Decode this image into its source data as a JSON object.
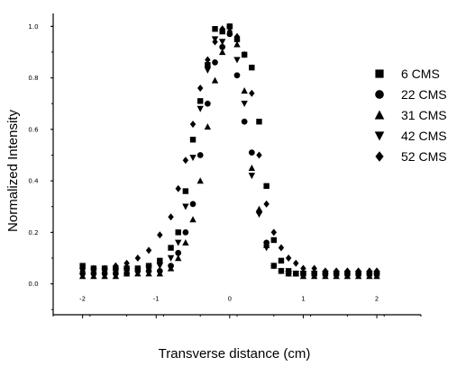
{
  "chart_data": {
    "type": "scatter",
    "title": "",
    "xlabel": "Transverse distance (cm)",
    "ylabel": "Normalized Intensity",
    "xlim": [
      -2.4,
      2.6
    ],
    "ylim": [
      -0.12,
      1.05
    ],
    "xticks": [
      -2,
      -1,
      0,
      1,
      2
    ],
    "xtick_labels": [
      "-2",
      "-1",
      "0",
      "1",
      "2"
    ],
    "yticks": [
      0.0,
      0.2,
      0.4,
      0.6,
      0.8,
      1.0
    ],
    "ytick_labels": [
      "0.0",
      "0.2",
      "0.4",
      "0.6",
      "0.8",
      "1.0"
    ],
    "grid": false,
    "legend_position": "right",
    "series": [
      {
        "name": "6 CMS",
        "marker": "square",
        "x": [
          -2.0,
          -1.85,
          -1.7,
          -1.55,
          -1.4,
          -1.25,
          -1.1,
          -0.95,
          -0.8,
          -0.7,
          -0.6,
          -0.5,
          -0.4,
          -0.3,
          -0.2,
          -0.1,
          0.0,
          0.1,
          0.2,
          0.3,
          0.4,
          0.5,
          0.6,
          0.7,
          0.8,
          0.9,
          1.0,
          1.15,
          1.3,
          1.45,
          1.6,
          1.75,
          1.9,
          2.0
        ],
        "y": [
          0.07,
          0.06,
          0.06,
          0.06,
          0.06,
          0.06,
          0.07,
          0.09,
          0.14,
          0.2,
          0.36,
          0.56,
          0.71,
          0.85,
          0.99,
          0.98,
          1.0,
          0.95,
          0.89,
          0.84,
          0.63,
          0.38,
          0.17,
          0.09,
          0.05,
          0.04,
          0.04,
          0.04,
          0.04,
          0.04,
          0.04,
          0.04,
          0.04,
          0.04
        ]
      },
      {
        "name": "22 CMS",
        "marker": "circle",
        "x": [
          -2.0,
          -1.85,
          -1.7,
          -1.55,
          -1.4,
          -1.25,
          -1.1,
          -0.95,
          -0.8,
          -0.7,
          -0.6,
          -0.5,
          -0.4,
          -0.3,
          -0.2,
          -0.1,
          0.0,
          0.1,
          0.2,
          0.3,
          0.4,
          0.5,
          0.6,
          0.7,
          0.8,
          0.9,
          1.0,
          1.15,
          1.3,
          1.45,
          1.6,
          1.75,
          1.9,
          2.0
        ],
        "y": [
          0.04,
          0.04,
          0.04,
          0.04,
          0.04,
          0.05,
          0.05,
          0.05,
          0.07,
          0.12,
          0.2,
          0.31,
          0.5,
          0.7,
          0.86,
          0.92,
          0.97,
          0.81,
          0.63,
          0.51,
          0.28,
          0.16,
          0.07,
          0.05,
          0.04,
          0.04,
          0.04,
          0.04,
          0.04,
          0.04,
          0.04,
          0.04,
          0.04,
          0.04
        ]
      },
      {
        "name": "31 CMS",
        "marker": "triangle",
        "x": [
          -2.0,
          -1.85,
          -1.7,
          -1.55,
          -1.4,
          -1.25,
          -1.1,
          -0.95,
          -0.8,
          -0.7,
          -0.6,
          -0.5,
          -0.4,
          -0.3,
          -0.2,
          -0.1,
          0.0,
          0.1,
          0.2,
          0.3,
          0.4,
          0.5,
          0.6,
          0.7,
          0.8,
          0.9,
          1.0,
          1.15,
          1.3,
          1.45,
          1.6,
          1.75,
          1.9,
          2.0
        ],
        "y": [
          0.03,
          0.03,
          0.03,
          0.03,
          0.04,
          0.04,
          0.04,
          0.04,
          0.06,
          0.1,
          0.16,
          0.25,
          0.4,
          0.61,
          0.79,
          0.9,
          1.0,
          0.93,
          0.75,
          0.45,
          0.29,
          0.15,
          0.07,
          0.05,
          0.04,
          0.04,
          0.03,
          0.03,
          0.03,
          0.03,
          0.03,
          0.03,
          0.03,
          0.03
        ]
      },
      {
        "name": "42 CMS",
        "marker": "triangle-down",
        "x": [
          -2.0,
          -1.85,
          -1.7,
          -1.55,
          -1.4,
          -1.25,
          -1.1,
          -0.95,
          -0.8,
          -0.7,
          -0.6,
          -0.5,
          -0.4,
          -0.3,
          -0.2,
          -0.1,
          0.0,
          0.1,
          0.2,
          0.3,
          0.4,
          0.5,
          0.6,
          0.7,
          0.8,
          0.9,
          1.0,
          1.15,
          1.3,
          1.45,
          1.6,
          1.75,
          1.9,
          2.0
        ],
        "y": [
          0.05,
          0.05,
          0.05,
          0.05,
          0.05,
          0.05,
          0.06,
          0.07,
          0.1,
          0.16,
          0.3,
          0.49,
          0.68,
          0.83,
          0.95,
          0.94,
          0.99,
          0.87,
          0.7,
          0.42,
          0.27,
          0.14,
          0.07,
          0.05,
          0.04,
          0.04,
          0.04,
          0.04,
          0.04,
          0.04,
          0.04,
          0.04,
          0.04,
          0.04
        ]
      },
      {
        "name": "52 CMS",
        "marker": "diamond",
        "x": [
          -2.0,
          -1.85,
          -1.7,
          -1.55,
          -1.4,
          -1.25,
          -1.1,
          -0.95,
          -0.8,
          -0.7,
          -0.6,
          -0.5,
          -0.4,
          -0.3,
          -0.2,
          -0.1,
          0.0,
          0.1,
          0.2,
          0.3,
          0.4,
          0.5,
          0.6,
          0.7,
          0.8,
          0.9,
          1.0,
          1.15,
          1.3,
          1.45,
          1.6,
          1.75,
          1.9,
          2.0
        ],
        "y": [
          0.05,
          0.06,
          0.06,
          0.07,
          0.08,
          0.1,
          0.13,
          0.19,
          0.26,
          0.37,
          0.48,
          0.62,
          0.76,
          0.87,
          0.94,
          0.99,
          0.98,
          0.96,
          0.89,
          0.74,
          0.5,
          0.31,
          0.2,
          0.14,
          0.1,
          0.08,
          0.06,
          0.06,
          0.05,
          0.05,
          0.05,
          0.05,
          0.05,
          0.05
        ]
      }
    ]
  }
}
